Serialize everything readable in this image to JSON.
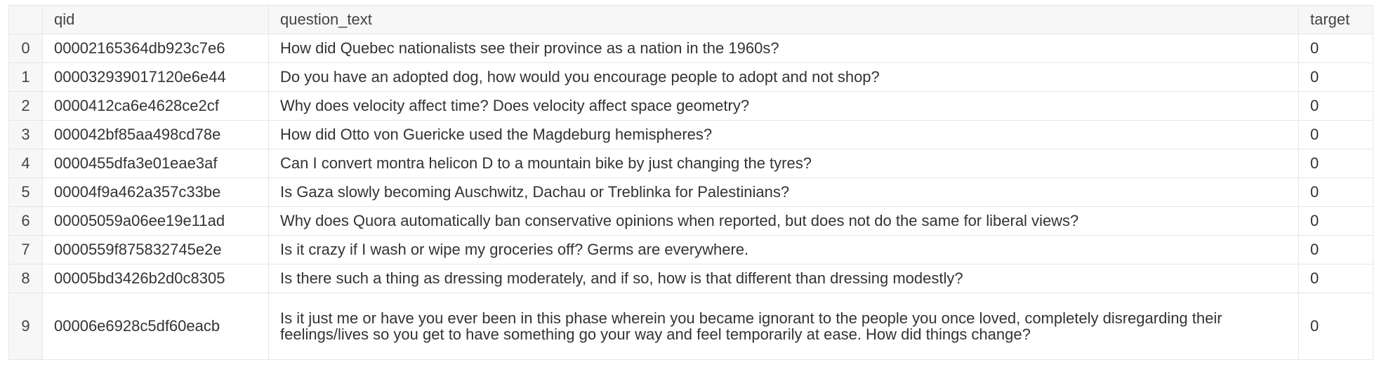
{
  "table": {
    "columns": {
      "index": "",
      "qid": "qid",
      "question_text": "question_text",
      "target": "target"
    },
    "rows": [
      {
        "index": "0",
        "qid": "00002165364db923c7e6",
        "question_text": "How did Quebec nationalists see their province as a nation in the 1960s?",
        "target": "0"
      },
      {
        "index": "1",
        "qid": "000032939017120e6e44",
        "question_text": "Do you have an adopted dog, how would you encourage people to adopt and not shop?",
        "target": "0"
      },
      {
        "index": "2",
        "qid": "0000412ca6e4628ce2cf",
        "question_text": "Why does velocity affect time? Does velocity affect space geometry?",
        "target": "0"
      },
      {
        "index": "3",
        "qid": "000042bf85aa498cd78e",
        "question_text": "How did Otto von Guericke used the Magdeburg hemispheres?",
        "target": "0"
      },
      {
        "index": "4",
        "qid": "0000455dfa3e01eae3af",
        "question_text": "Can I convert montra helicon D to a mountain bike by just changing the tyres?",
        "target": "0"
      },
      {
        "index": "5",
        "qid": "00004f9a462a357c33be",
        "question_text": "Is Gaza slowly becoming Auschwitz, Dachau or Treblinka for Palestinians?",
        "target": "0"
      },
      {
        "index": "6",
        "qid": "00005059a06ee19e11ad",
        "question_text": "Why does Quora automatically ban conservative opinions when reported, but does not do the same for liberal views?",
        "target": "0"
      },
      {
        "index": "7",
        "qid": "0000559f875832745e2e",
        "question_text": "Is it crazy if I wash or wipe my groceries off? Germs are everywhere.",
        "target": "0"
      },
      {
        "index": "8",
        "qid": "00005bd3426b2d0c8305",
        "question_text": "Is there such a thing as dressing moderately, and if so, how is that different than dressing modestly?",
        "target": "0"
      },
      {
        "index": "9",
        "qid": "00006e6928c5df60eacb",
        "question_text": "Is it just me or have you ever been in this phase wherein you became ignorant to the people you once loved, completely disregarding their feelings/lives so you get to have something go your way and feel temporarily at ease. How did things change?",
        "target": "0"
      }
    ]
  }
}
